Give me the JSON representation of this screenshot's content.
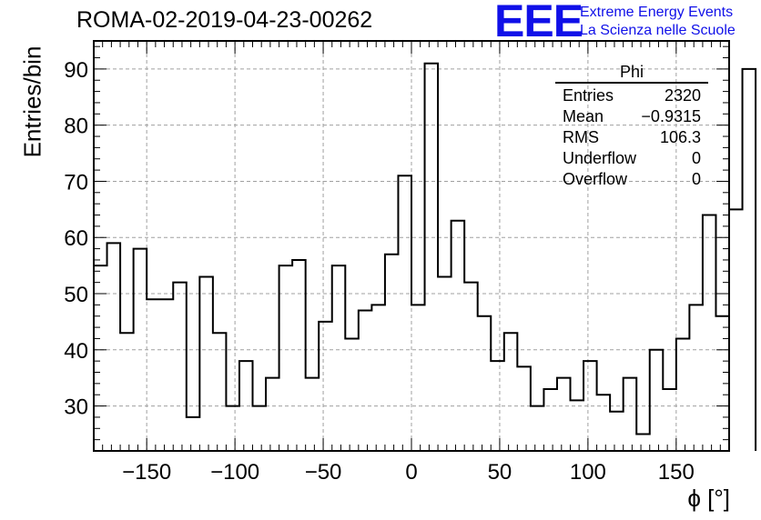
{
  "header": {
    "title": "ROMA-02-2019-04-23-00262",
    "logo": "EEE",
    "logo_line1": "Extreme Energy Events",
    "logo_line2": "La Scienza nelle Scuole"
  },
  "stats_box": {
    "title": "Phi",
    "rows": [
      {
        "label": "Entries",
        "value": "2320"
      },
      {
        "label": "Mean",
        "value": "−0.9315"
      },
      {
        "label": "RMS",
        "value": "106.3"
      },
      {
        "label": "Underflow",
        "value": "0"
      },
      {
        "label": "Overflow",
        "value": "0"
      }
    ]
  },
  "chart_data": {
    "type": "histogram",
    "title": "ROMA-02-2019-04-23-00262",
    "xlabel": "ϕ [°]",
    "ylabel": "Entries/bin",
    "xlim": [
      -180,
      180
    ],
    "ylim": [
      22,
      95
    ],
    "bin_edges_start": -180,
    "bin_width": 7.5,
    "values": [
      55,
      59,
      43,
      58,
      49,
      49,
      52,
      28,
      53,
      43,
      30,
      38,
      30,
      35,
      55,
      56,
      35,
      45,
      55,
      42,
      47,
      48,
      57,
      71,
      48,
      91,
      53,
      63,
      52,
      46,
      38,
      43,
      37,
      30,
      33,
      35,
      31,
      38,
      32,
      29,
      35,
      25,
      40,
      33,
      42,
      48,
      64,
      46,
      65,
      90
    ],
    "x_ticks": [
      -150,
      -100,
      -50,
      0,
      50,
      100,
      150
    ],
    "x_tick_labels": [
      "−150",
      "−100",
      "−50",
      "0",
      "50",
      "100",
      "150"
    ],
    "y_ticks": [
      30,
      40,
      50,
      60,
      70,
      80,
      90
    ],
    "y_tick_labels": [
      "30",
      "40",
      "50",
      "60",
      "70",
      "80",
      "90"
    ],
    "grid": true,
    "line_color": "#000000",
    "grid_color": "#a0a0a0",
    "logo_color": "#1010e8"
  }
}
